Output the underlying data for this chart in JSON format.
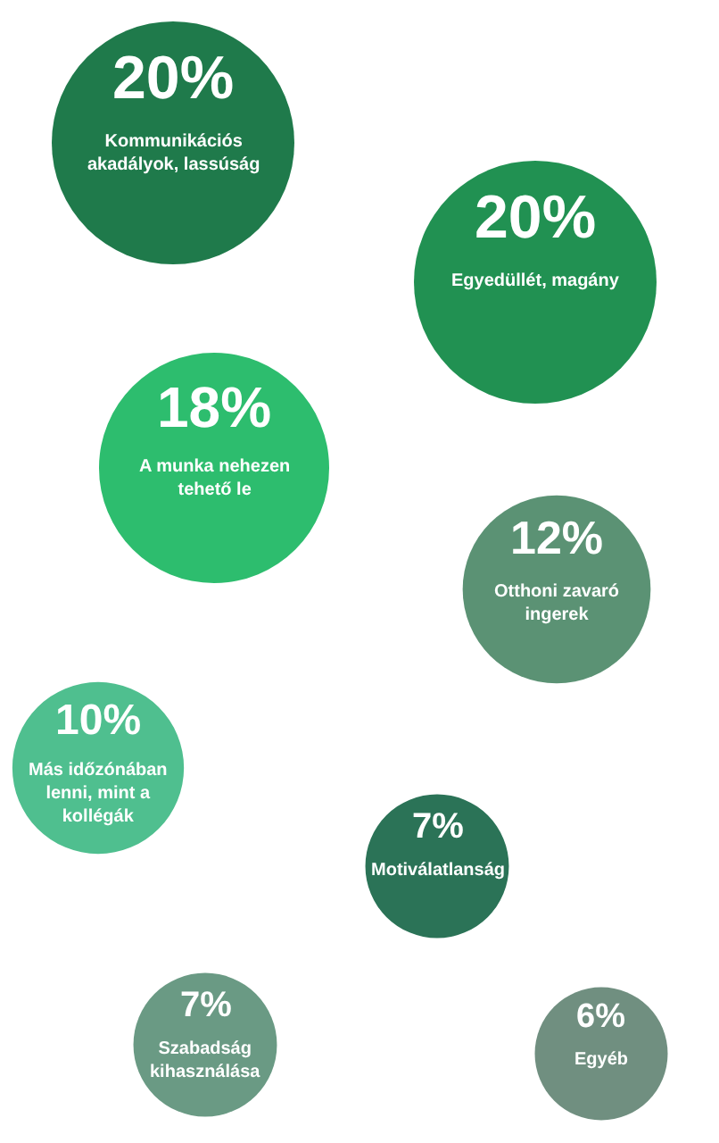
{
  "chart_data": {
    "type": "other",
    "categories": [
      "Kommunikációs akadályok, lassúság",
      "Egyedüllét, magány",
      "A munka nehezen tehető le",
      "Otthoni zavaró ingerek",
      "Más időzónában lenni, mint a kollégák",
      "Motiválatlanság",
      "Szabadság kihasználása",
      "Egyéb"
    ],
    "values": [
      20,
      20,
      18,
      12,
      10,
      7,
      7,
      6
    ],
    "value_labels": [
      "20%",
      "20%",
      "18%",
      "12%",
      "10%",
      "7%",
      "7%",
      "6%"
    ],
    "colors": [
      "#1f7a4b",
      "#219152",
      "#2dbd6e",
      "#5b9274",
      "#4fbf8f",
      "#2b7357",
      "#6a9a84",
      "#708f80"
    ]
  }
}
